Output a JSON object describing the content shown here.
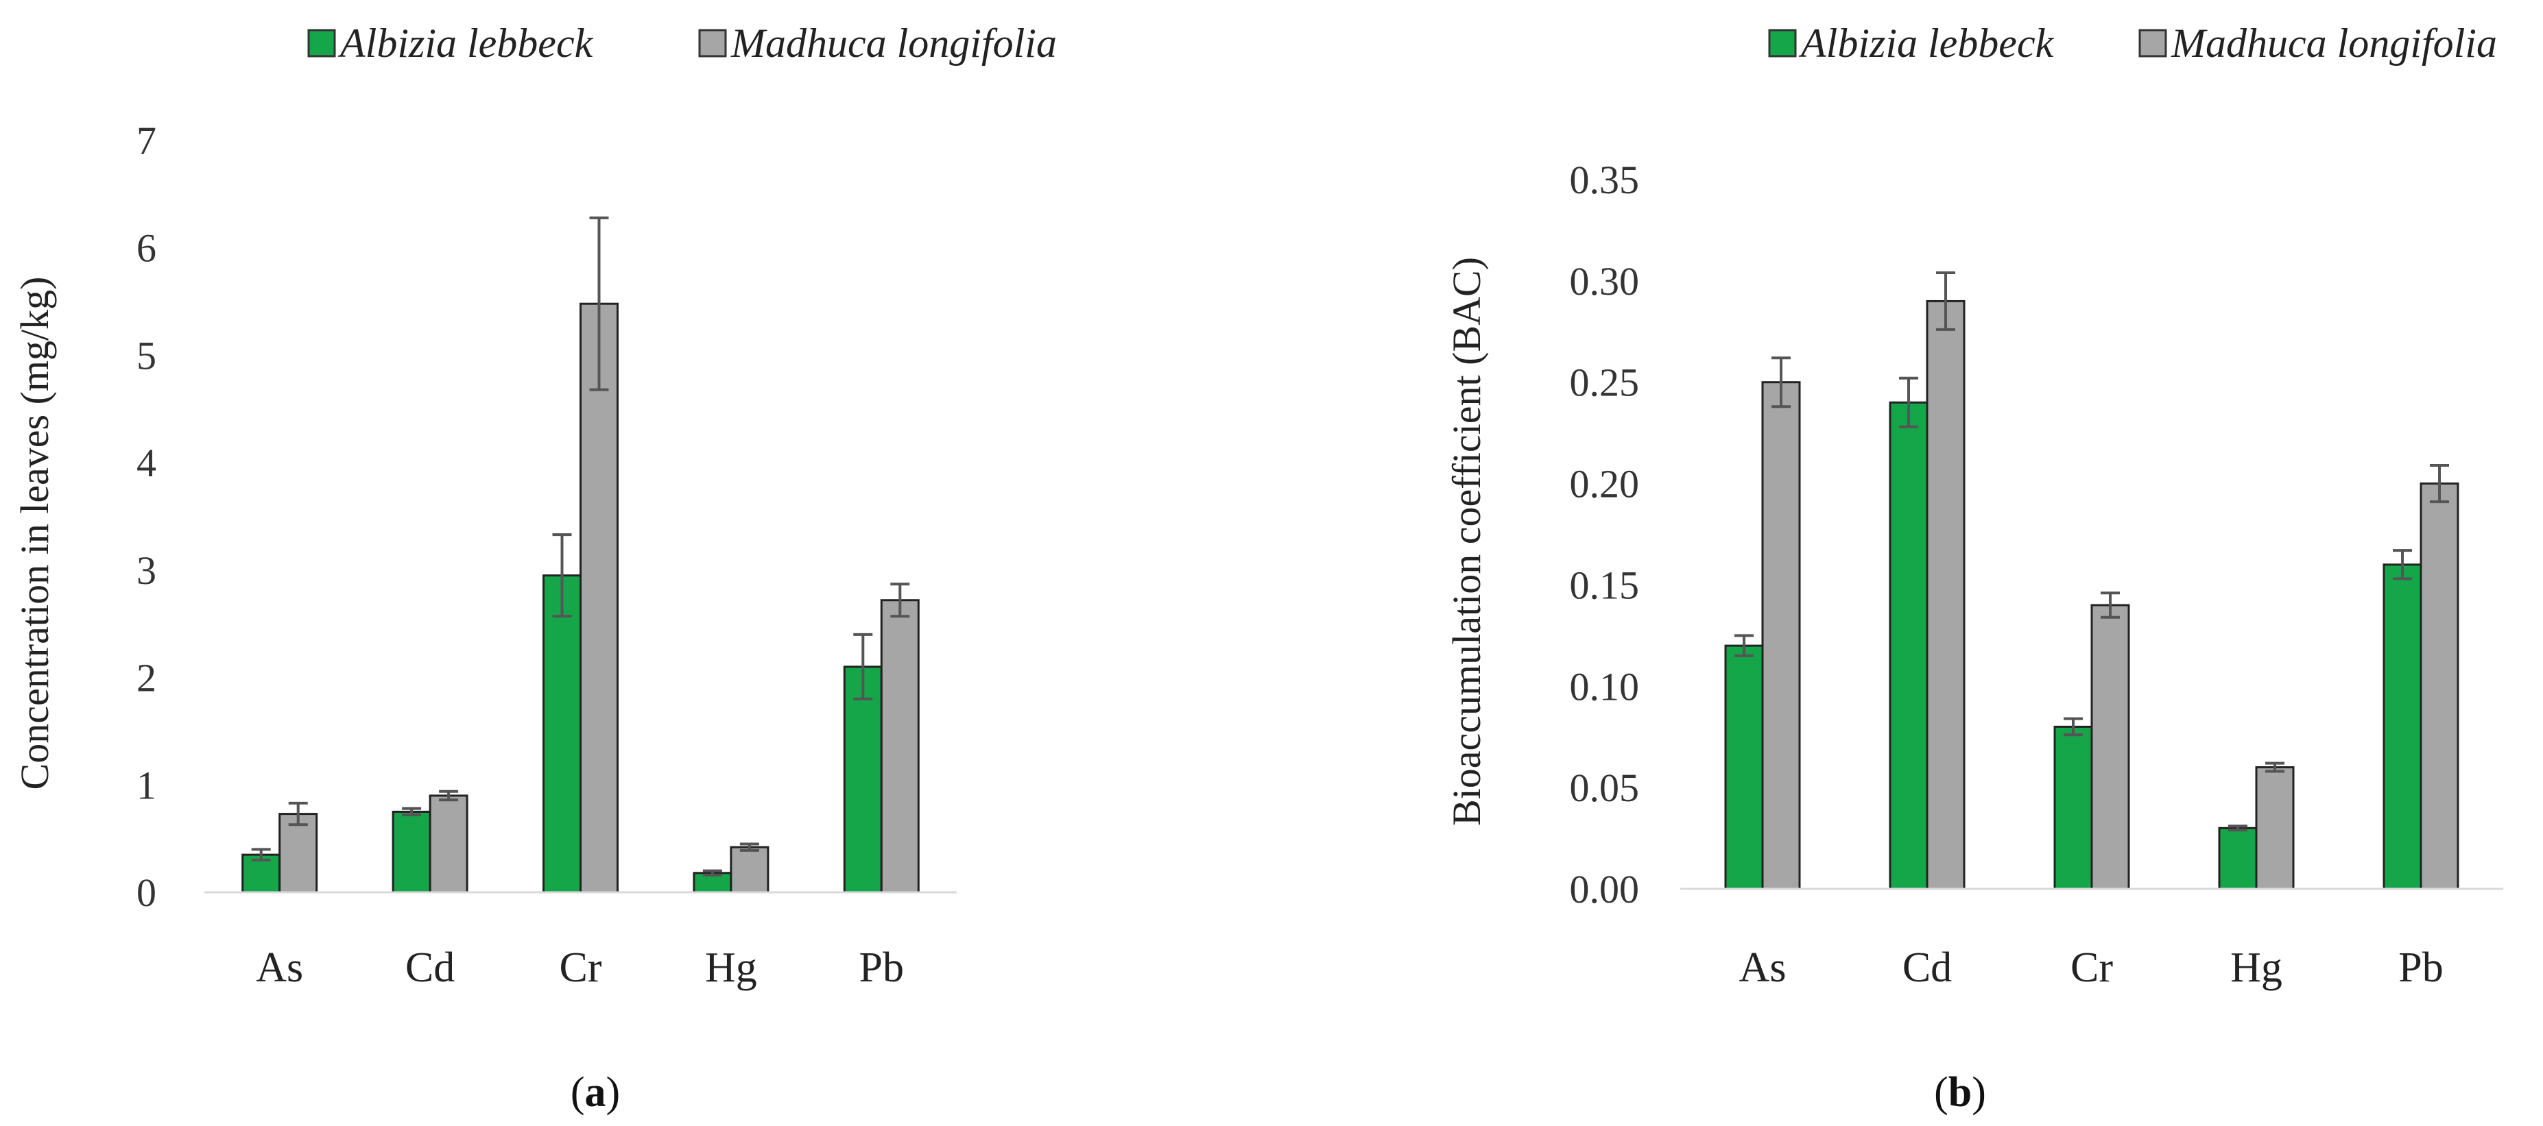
{
  "chart_data": [
    {
      "type": "bar",
      "panel_label": {
        "open": "(",
        "letter": "a",
        "close": ")"
      },
      "categories": [
        "As",
        "Cd",
        "Cr",
        "Hg",
        "Pb"
      ],
      "series": [
        {
          "name": "Albizia lebbeck",
          "color": "#16a64a",
          "values": [
            0.35,
            0.75,
            2.95,
            0.18,
            2.1
          ],
          "errors": [
            0.05,
            0.03,
            0.38,
            0.02,
            0.3
          ]
        },
        {
          "name": "Madhuca longifolia",
          "color": "#a6a6a6",
          "values": [
            0.73,
            0.9,
            5.48,
            0.42,
            2.72
          ],
          "errors": [
            0.1,
            0.04,
            0.8,
            0.03,
            0.15
          ]
        }
      ],
      "ylabel": "Concentration in leaves (mg/kg)",
      "xlabel": "",
      "ylim": [
        0,
        7
      ],
      "yticks": [
        0,
        1,
        2,
        3,
        4,
        5,
        6,
        7
      ],
      "ytick_labels": [
        "0",
        "1",
        "2",
        "3",
        "4",
        "5",
        "6",
        "7"
      ],
      "legend": "top"
    },
    {
      "type": "bar",
      "panel_label": {
        "open": "(",
        "letter": "b",
        "close": ")"
      },
      "categories": [
        "As",
        "Cd",
        "Cr",
        "Hg",
        "Pb"
      ],
      "series": [
        {
          "name": "Albizia lebbeck",
          "color": "#16a64a",
          "values": [
            0.12,
            0.24,
            0.08,
            0.03,
            0.16
          ],
          "errors": [
            0.005,
            0.012,
            0.004,
            0.001,
            0.007
          ]
        },
        {
          "name": "Madhuca longifolia",
          "color": "#a6a6a6",
          "values": [
            0.25,
            0.29,
            0.14,
            0.06,
            0.2
          ],
          "errors": [
            0.012,
            0.014,
            0.006,
            0.002,
            0.009
          ]
        }
      ],
      "ylabel": "Bioaccumulation coefficient (BAC)",
      "xlabel": "",
      "ylim": [
        0,
        0.35
      ],
      "yticks": [
        0,
        0.05,
        0.1,
        0.15,
        0.2,
        0.25,
        0.3,
        0.35
      ],
      "ytick_labels": [
        "0.00",
        "0.05",
        "0.10",
        "0.15",
        "0.20",
        "0.25",
        "0.30",
        "0.35"
      ],
      "legend": "top"
    }
  ]
}
